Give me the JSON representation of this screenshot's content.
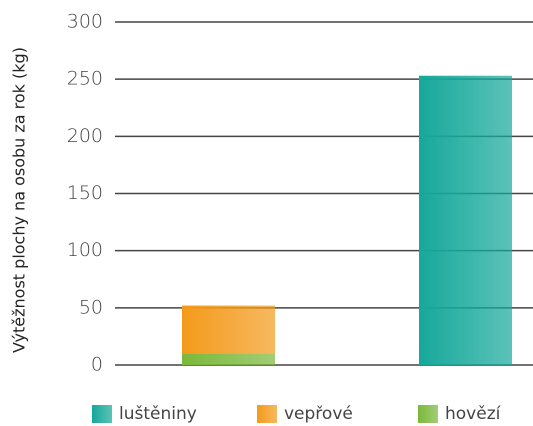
{
  "chart_data": {
    "type": "stacked_bar",
    "y_label": "Výtěžnost plochy na osobu za rok (kg)",
    "categories": [
      null,
      null
    ],
    "series": [
      {
        "name": "luštěniny",
        "color": "#16a89a",
        "values": [
          null,
          253
        ]
      },
      {
        "name": "vepřové",
        "color": "#f39a1b",
        "values": [
          42,
          null
        ]
      },
      {
        "name": "hovězí",
        "color": "#7ab83a",
        "values": [
          10,
          null
        ]
      }
    ],
    "stack_order": [
      "hovězí",
      "vepřové",
      "luštěniny"
    ],
    "ylim": [
      0,
      300
    ],
    "yticks": [
      0,
      50,
      100,
      150,
      200,
      250,
      300
    ],
    "grid": true,
    "legend": "bottom"
  }
}
